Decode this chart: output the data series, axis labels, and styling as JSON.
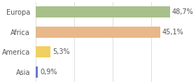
{
  "categories": [
    "Europa",
    "Africa",
    "America",
    "Asia"
  ],
  "values": [
    48.7,
    45.1,
    5.3,
    0.9
  ],
  "labels": [
    "48,7%",
    "45,1%",
    "5,3%",
    "0,9%"
  ],
  "bar_colors": [
    "#a8c08a",
    "#e8b88a",
    "#f0d060",
    "#6878c8"
  ],
  "background_color": "#ffffff",
  "xlim": [
    0,
    56
  ],
  "bar_height": 0.55,
  "label_fontsize": 7,
  "tick_fontsize": 7,
  "grid_color": "#dddddd",
  "grid_positions": [
    0,
    14,
    28,
    42,
    56
  ]
}
